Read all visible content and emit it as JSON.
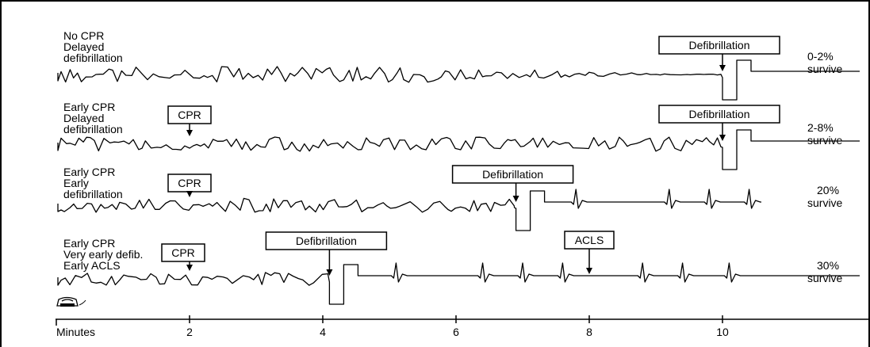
{
  "axis": {
    "label": "Minutes",
    "ticks": [
      2,
      4,
      6,
      8,
      10
    ]
  },
  "scenarios": [
    {
      "labels": [
        "No CPR",
        "Delayed",
        "defibrillation"
      ],
      "survival": [
        "0-2%",
        "survive"
      ],
      "cpr_label": "",
      "cpr_minute": null,
      "defib_label": "Defibrillation",
      "defib_minute": 10,
      "acls_label": "",
      "acls_minute": null,
      "vf_amplitude": "decaying",
      "outcome": "flatline",
      "beats": []
    },
    {
      "labels": [
        "Early CPR",
        "Delayed",
        "defibrillation"
      ],
      "survival": [
        "2-8%",
        "survive"
      ],
      "cpr_label": "CPR",
      "cpr_minute": 2,
      "defib_label": "Defibrillation",
      "defib_minute": 10,
      "acls_label": "",
      "acls_minute": null,
      "vf_amplitude": "sustained",
      "outcome": "flatline",
      "beats": []
    },
    {
      "labels": [
        "Early CPR",
        "Early",
        "defibrillation"
      ],
      "survival": [
        "20%",
        "survive"
      ],
      "cpr_label": "CPR",
      "cpr_minute": 2,
      "defib_label": "Defibrillation",
      "defib_minute": 6.9,
      "acls_label": "",
      "acls_minute": null,
      "vf_amplitude": "sustained",
      "outcome": "rhythm",
      "beats": [
        7.8,
        9.2,
        9.8,
        10.4
      ]
    },
    {
      "labels": [
        "Early CPR",
        "Very early defib.",
        "Early ACLS"
      ],
      "survival": [
        "30%",
        "survive"
      ],
      "cpr_label": "CPR",
      "cpr_minute": 2,
      "defib_label": "Defibrillation",
      "defib_minute": 4.1,
      "acls_label": "ACLS",
      "acls_minute": 8,
      "vf_amplitude": "sustained",
      "outcome": "rhythm",
      "beats": [
        5.1,
        6.4,
        7.0,
        7.6,
        8.8,
        9.4,
        10.1
      ]
    }
  ],
  "phone_icon": "telephone-icon"
}
